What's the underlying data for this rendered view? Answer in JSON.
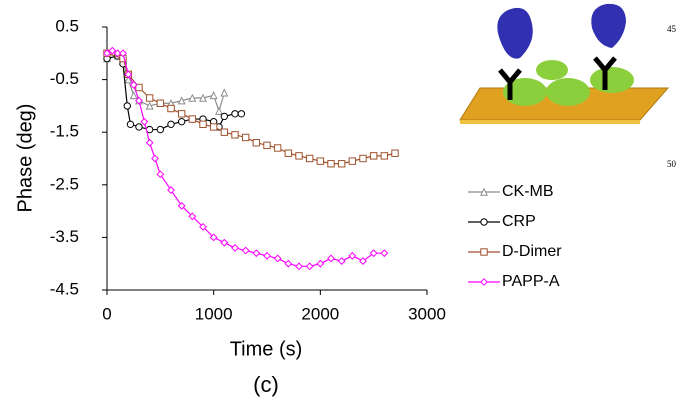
{
  "chart_data": {
    "type": "line",
    "caption": "(c)",
    "xlabel": "Time (s)",
    "ylabel": "Phase (deg)",
    "xlim": [
      0,
      3000
    ],
    "xticks": [
      0,
      1000,
      2000,
      3000
    ],
    "ylim": [
      -4.5,
      0.5
    ],
    "yticks": [
      0.5,
      -0.5,
      -1.5,
      -2.5,
      -3.5,
      -4.5
    ],
    "annotations": [
      "45",
      "50"
    ],
    "series": [
      {
        "name": "CK-MB",
        "color": "#8c8c8c",
        "marker": "triangle",
        "x": [
          0,
          100,
          150,
          200,
          250,
          300,
          400,
          500,
          600,
          700,
          800,
          900,
          1000,
          1050,
          1100
        ],
        "values": [
          -0.1,
          -0.05,
          -0.15,
          -0.5,
          -0.8,
          -0.9,
          -1.0,
          -0.95,
          -0.95,
          -0.9,
          -0.85,
          -0.85,
          -0.8,
          -1.1,
          -0.75
        ]
      },
      {
        "name": "CRP",
        "color": "#000000",
        "marker": "circle",
        "x": [
          0,
          100,
          150,
          190,
          220,
          300,
          400,
          500,
          600,
          700,
          800,
          900,
          1000,
          1050,
          1100,
          1200,
          1260
        ],
        "values": [
          -0.1,
          -0.05,
          -0.2,
          -1.0,
          -1.35,
          -1.4,
          -1.45,
          -1.45,
          -1.35,
          -1.3,
          -1.25,
          -1.25,
          -1.3,
          -1.4,
          -1.2,
          -1.15,
          -1.15
        ]
      },
      {
        "name": "D-Dimer",
        "color": "#a0522d",
        "marker": "square",
        "x": [
          0,
          150,
          200,
          300,
          400,
          500,
          600,
          700,
          800,
          900,
          1000,
          1100,
          1200,
          1300,
          1400,
          1500,
          1600,
          1700,
          1800,
          1900,
          2000,
          2100,
          2200,
          2300,
          2400,
          2500,
          2600,
          2700
        ],
        "values": [
          0,
          -0.1,
          -0.4,
          -0.65,
          -0.85,
          -0.95,
          -1.05,
          -1.15,
          -1.25,
          -1.35,
          -1.4,
          -1.5,
          -1.55,
          -1.6,
          -1.7,
          -1.75,
          -1.8,
          -1.9,
          -1.95,
          -2.0,
          -2.05,
          -2.1,
          -2.1,
          -2.05,
          -2.0,
          -1.95,
          -1.95,
          -1.9
        ]
      },
      {
        "name": "PAPP-A",
        "color": "#ff00ff",
        "marker": "diamond",
        "x": [
          0,
          50,
          100,
          150,
          200,
          250,
          300,
          350,
          400,
          450,
          500,
          600,
          700,
          800,
          900,
          1000,
          1100,
          1200,
          1300,
          1400,
          1500,
          1600,
          1700,
          1800,
          1900,
          2000,
          2100,
          2200,
          2300,
          2400,
          2500,
          2600
        ],
        "values": [
          0,
          0.05,
          0,
          0,
          -0.4,
          -0.6,
          -0.9,
          -1.3,
          -1.7,
          -2.0,
          -2.3,
          -2.6,
          -2.9,
          -3.1,
          -3.3,
          -3.5,
          -3.6,
          -3.7,
          -3.75,
          -3.8,
          -3.85,
          -3.9,
          -4.0,
          -4.05,
          -4.05,
          -4.0,
          -3.9,
          -3.95,
          -3.85,
          -3.95,
          -3.8,
          -3.8
        ]
      }
    ]
  }
}
